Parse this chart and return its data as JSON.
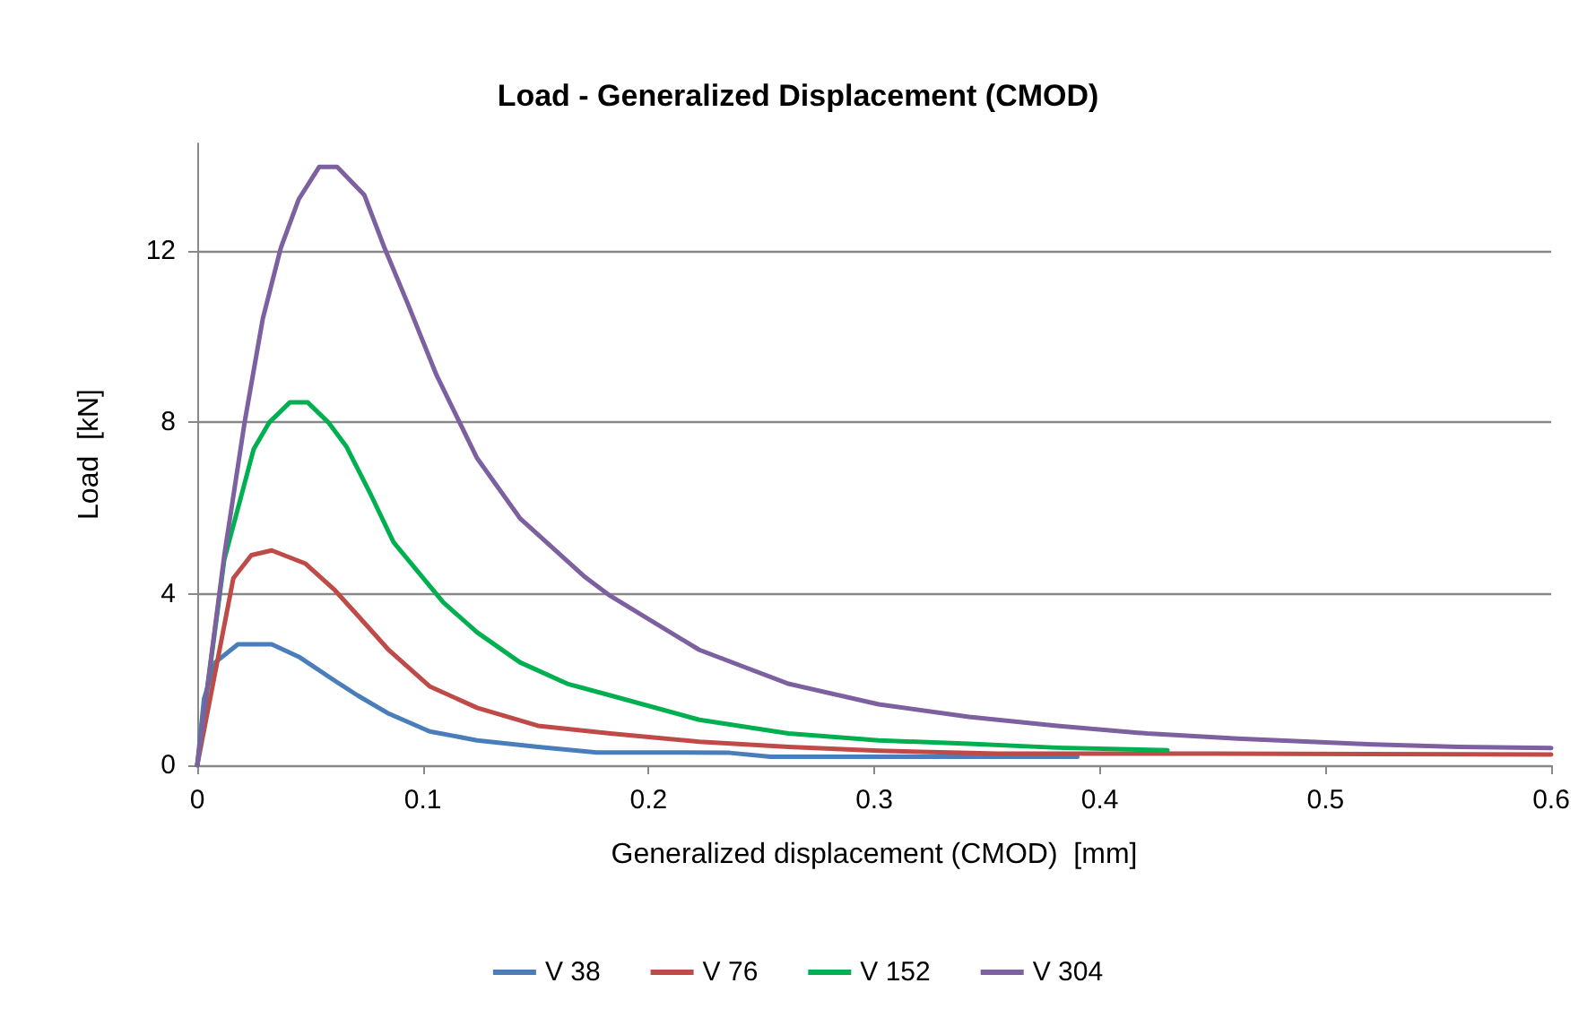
{
  "chart_data": {
    "type": "line",
    "title": "Load - Generalized Displacement (CMOD)",
    "xlabel": "Generalized displacement (CMOD)  [mm]",
    "ylabel": "Load  [kN]",
    "xlim": [
      0,
      0.6
    ],
    "xticks": [
      0,
      0.1,
      0.2,
      0.3,
      0.4,
      0.5,
      0.6
    ],
    "ylim": [
      0,
      14.5
    ],
    "yticks": [
      0,
      4,
      8,
      12
    ],
    "grid": "y",
    "legend": "bottom",
    "marker": "none",
    "line_style": "solid",
    "series": [
      {
        "name": "V 38",
        "color": "#4a7ebb",
        "x": [
          0,
          0.003,
          0.008,
          0.018,
          0.033,
          0.045,
          0.061,
          0.071,
          0.085,
          0.103,
          0.124,
          0.151,
          0.177,
          0.2,
          0.236,
          0.254,
          0.32,
          0.39
        ],
        "values": [
          0,
          1.55,
          2.4,
          2.82,
          2.82,
          2.53,
          1.97,
          1.63,
          1.2,
          0.79,
          0.58,
          0.43,
          0.3,
          0.3,
          0.29,
          0.2,
          0.2,
          0.2
        ]
      },
      {
        "name": "V 76",
        "color": "#be4b48",
        "x": [
          0,
          0.016,
          0.024,
          0.033,
          0.048,
          0.061,
          0.071,
          0.085,
          0.103,
          0.124,
          0.151,
          0.183,
          0.2225,
          0.262,
          0.302,
          0.355,
          0.45,
          0.6
        ],
        "values": [
          0,
          4.36,
          4.9,
          5.01,
          4.7,
          4.08,
          3.5,
          2.68,
          1.84,
          1.34,
          0.92,
          0.74,
          0.55,
          0.43,
          0.34,
          0.27,
          0.27,
          0.25
        ]
      },
      {
        "name": "V 152",
        "color": "#00b050",
        "x": [
          0,
          0.012,
          0.025,
          0.032,
          0.041,
          0.049,
          0.058,
          0.066,
          0.077,
          0.087,
          0.098,
          0.109,
          0.124,
          0.143,
          0.164,
          0.183,
          0.2225,
          0.262,
          0.302,
          0.342,
          0.381,
          0.43
        ],
        "values": [
          0,
          4.8,
          7.37,
          8.0,
          8.46,
          8.46,
          8.0,
          7.44,
          6.3,
          5.2,
          4.5,
          3.8,
          3.1,
          2.4,
          1.9,
          1.63,
          1.06,
          0.74,
          0.58,
          0.5,
          0.41,
          0.35
        ]
      },
      {
        "name": "V 304",
        "color": "#7d60a0",
        "x": [
          0,
          0.012,
          0.021,
          0.029,
          0.037,
          0.045,
          0.054,
          0.062,
          0.074,
          0.083,
          0.093,
          0.106,
          0.124,
          0.143,
          0.172,
          0.183,
          0.2225,
          0.262,
          0.302,
          0.342,
          0.381,
          0.421,
          0.461,
          0.514,
          0.559,
          0.6
        ],
        "values": [
          0,
          4.9,
          8.0,
          10.4,
          12.06,
          13.2,
          13.95,
          13.95,
          13.3,
          12.06,
          10.8,
          9.1,
          7.16,
          5.76,
          4.38,
          3.95,
          2.69,
          1.9,
          1.42,
          1.13,
          0.92,
          0.74,
          0.62,
          0.5,
          0.43,
          0.4
        ]
      }
    ]
  }
}
